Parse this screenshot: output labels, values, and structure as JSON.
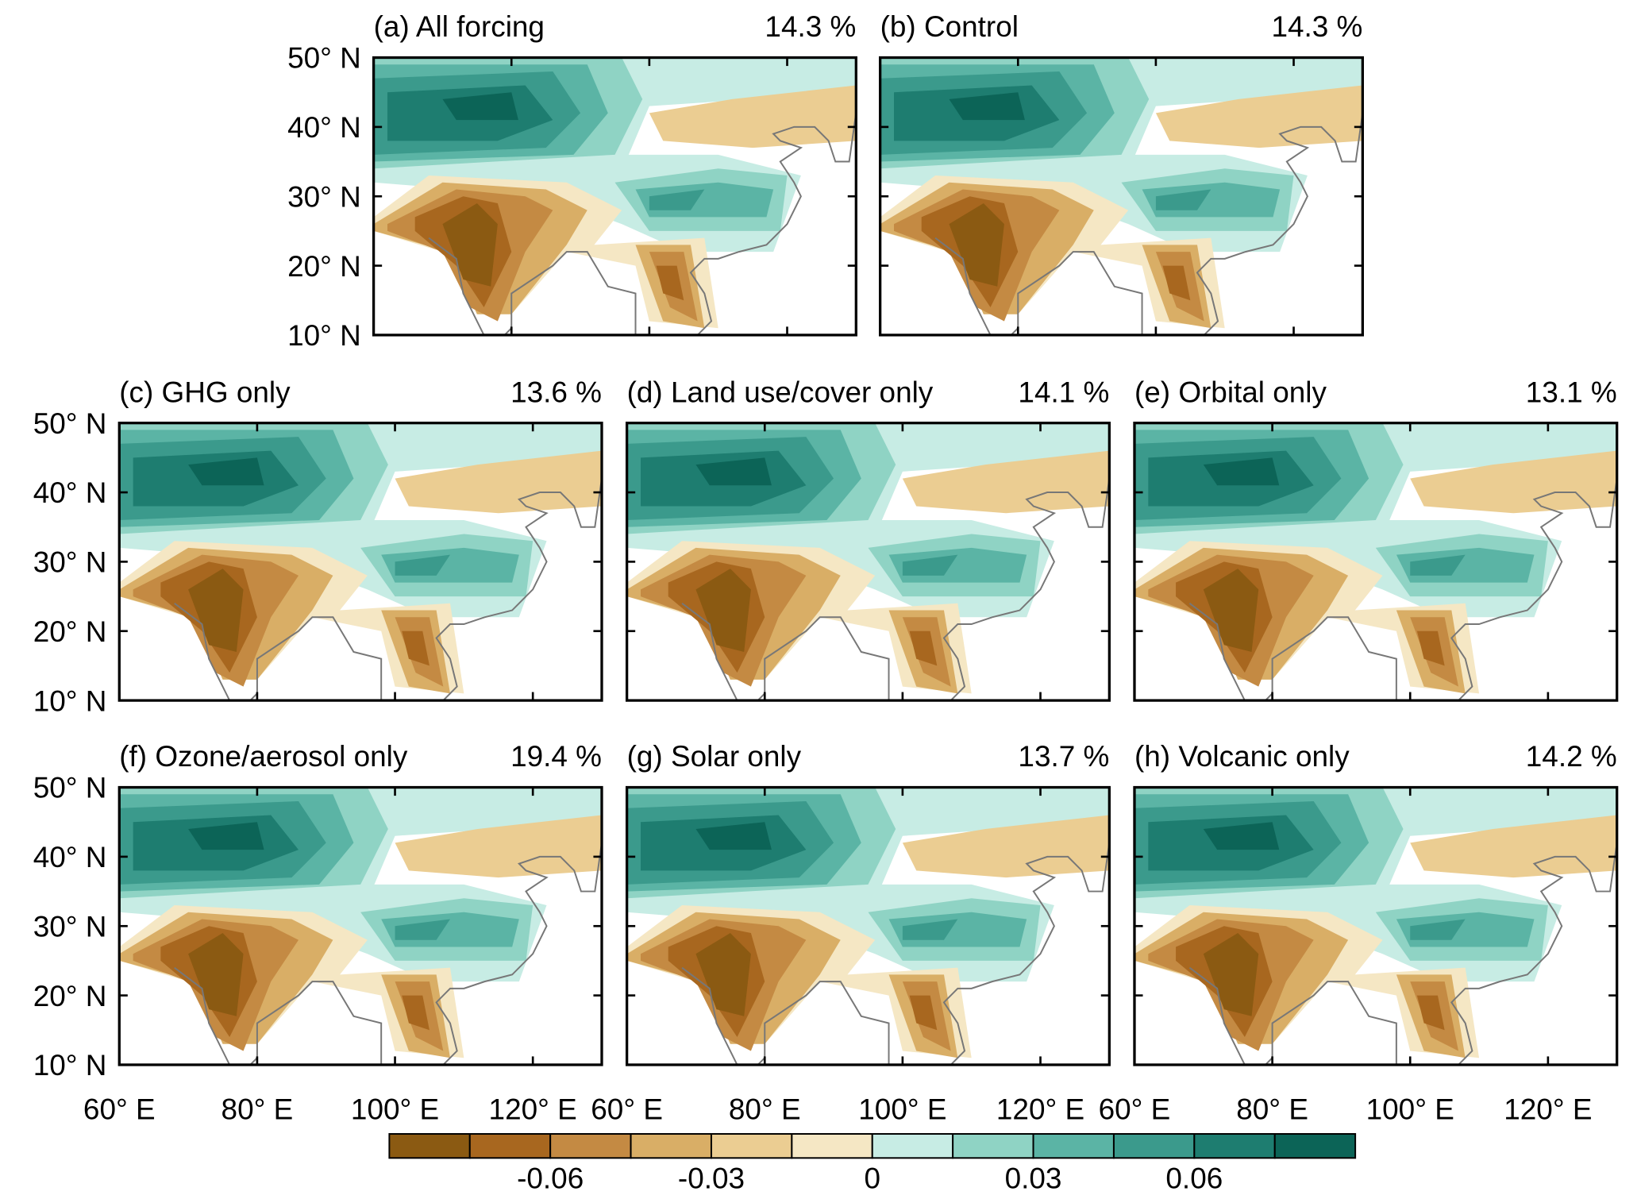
{
  "panels": [
    {
      "label": "(a) All forcing",
      "percent": "14.3 %"
    },
    {
      "label": "(b) Control",
      "percent": "14.3 %"
    },
    {
      "label": "(c) GHG only",
      "percent": "13.6 %"
    },
    {
      "label": "(d) Land use/cover only",
      "percent": "14.1 %"
    },
    {
      "label": "(e) Orbital only",
      "percent": "13.1 %"
    },
    {
      "label": "(f) Ozone/aerosol only",
      "percent": "19.4 %"
    },
    {
      "label": "(g) Solar only",
      "percent": "13.7 %"
    },
    {
      "label": "(h) Volcanic only",
      "percent": "14.2 %"
    }
  ],
  "lat_labels": [
    "50° N",
    "40° N",
    "30° N",
    "20° N",
    "10° N"
  ],
  "lon_labels": [
    "60° E",
    "80° E",
    "100° E",
    "120° E"
  ],
  "colorbar": {
    "colors": [
      "#8b5a12",
      "#a8671f",
      "#c48a43",
      "#d9ae66",
      "#ebcd92",
      "#f5e7c4",
      "#c7ece4",
      "#8fd3c4",
      "#5bb4a5",
      "#3b9a8c",
      "#1e7d70",
      "#0c6457"
    ],
    "labels": [
      "-0.06",
      "-0.03",
      "0",
      "0.03",
      "0.06"
    ]
  }
}
